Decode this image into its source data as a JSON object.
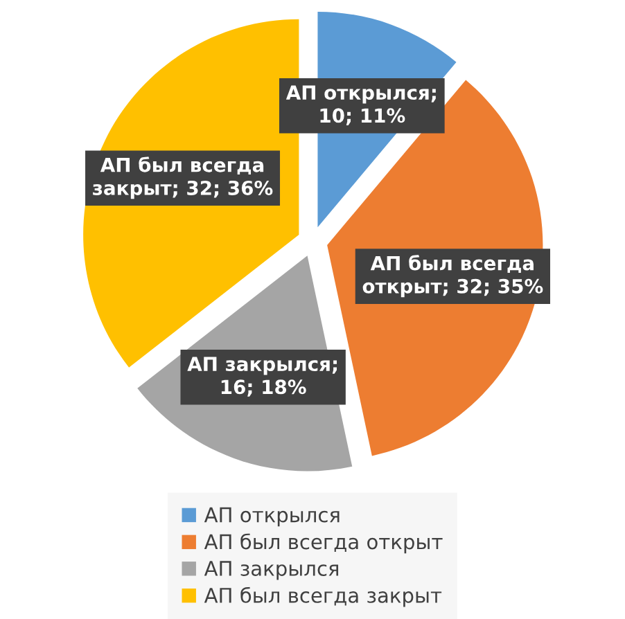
{
  "chart_data": {
    "type": "pie",
    "categories": [
      "АП открылся",
      "АП был всегда открыт",
      "АП закрылся",
      "АП был всегда закрыт"
    ],
    "values": [
      10,
      32,
      16,
      32
    ],
    "colors": [
      "#5b9bd5",
      "#ed7d31",
      "#a5a5a5",
      "#ffc000"
    ],
    "value_labels": [
      "АП открылся;\n10; 11%",
      "АП был всегда\nоткрыт; 32; 35%",
      "АП закрылся;\n16; 18%",
      "АП был всегда\nзакрыт; 32; 36%"
    ],
    "legend": "bottom"
  }
}
